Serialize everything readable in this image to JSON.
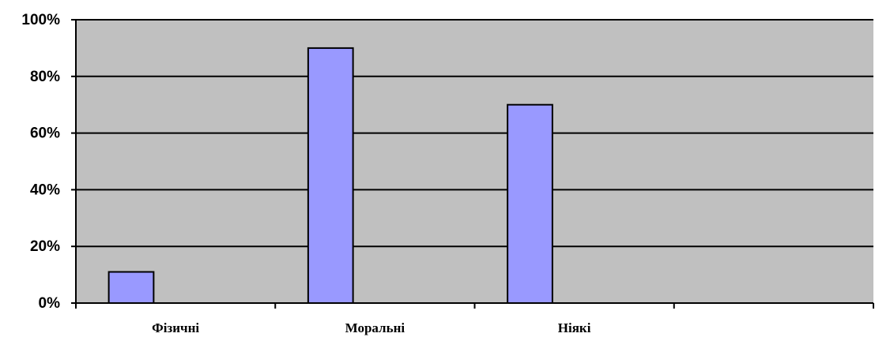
{
  "chart_data": {
    "type": "bar",
    "categories": [
      "Фізичні",
      "Моральні",
      "Ніякі",
      null
    ],
    "values": [
      11,
      90,
      70,
      null
    ],
    "color": "#9999ff",
    "ylim": [
      0,
      100
    ],
    "yticks": [
      {
        "value": 0,
        "label": "0%"
      },
      {
        "value": 20,
        "label": "20%"
      },
      {
        "value": 40,
        "label": "40%"
      },
      {
        "value": 60,
        "label": "60%"
      },
      {
        "value": 80,
        "label": "80%"
      },
      {
        "value": 100,
        "label": "100%"
      }
    ],
    "grid": true
  }
}
